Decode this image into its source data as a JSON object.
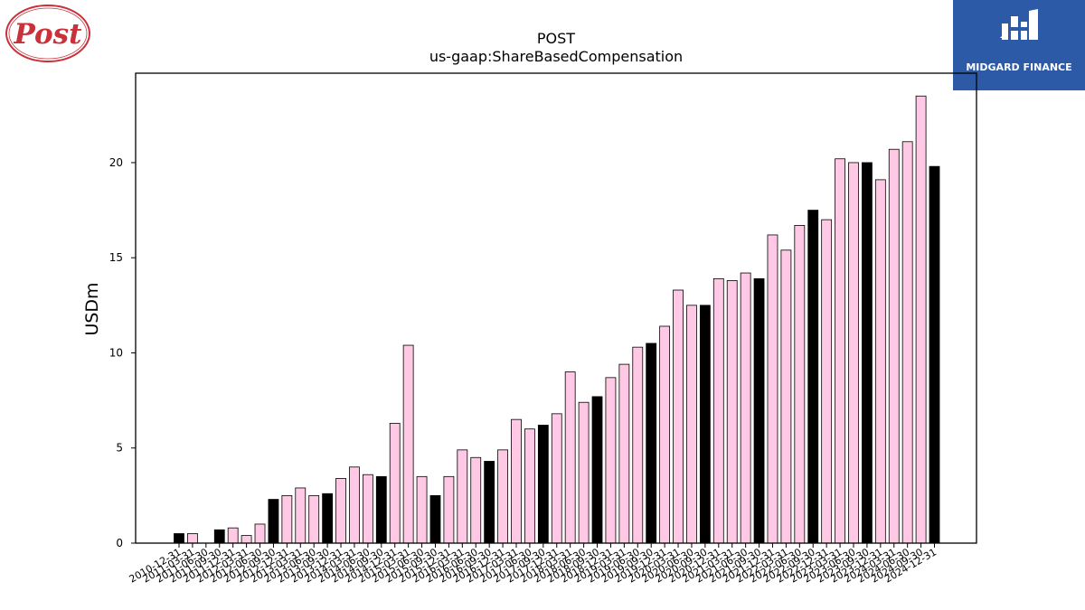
{
  "logos": {
    "left_name": "post-logo",
    "right_name": "midgard-finance-logo",
    "right_text": "MIDGARD FINANCE",
    "left_text": "Post"
  },
  "colors": {
    "bar_year_end": "#000000",
    "bar_quarter": "#ffc8e4",
    "bar_edge": "#000000",
    "logo_red": "#c9313b",
    "logo_blue": "#2c5aa7"
  },
  "chart_data": {
    "type": "bar",
    "title": "POST",
    "subtitle": "us-gaap:ShareBasedCompensation",
    "xlabel": "",
    "ylabel": "USDm",
    "ylim": [
      0,
      24.7
    ],
    "yticks": [
      0,
      5,
      10,
      15,
      20
    ],
    "grid": false,
    "legend": "none",
    "categories": [
      "2010-12-31",
      "2011-03-31",
      "2011-06-30",
      "2011-09-30",
      "2011-12-31",
      "2012-03-31",
      "2012-06-30",
      "2012-09-30",
      "2012-12-31",
      "2013-03-31",
      "2013-06-30",
      "2013-09-30",
      "2013-12-31",
      "2014-03-31",
      "2014-06-30",
      "2014-09-30",
      "2014-12-31",
      "2015-03-31",
      "2015-06-30",
      "2015-09-30",
      "2015-12-31",
      "2016-03-31",
      "2016-06-30",
      "2016-09-30",
      "2016-12-31",
      "2017-03-31",
      "2017-06-30",
      "2017-09-30",
      "2017-12-31",
      "2018-03-31",
      "2018-06-30",
      "2018-09-30",
      "2018-12-31",
      "2019-03-31",
      "2019-06-30",
      "2019-09-30",
      "2019-12-31",
      "2020-03-31",
      "2020-06-30",
      "2020-09-30",
      "2020-12-31",
      "2021-03-31",
      "2021-06-30",
      "2021-09-30",
      "2021-12-31",
      "2022-03-31",
      "2022-06-30",
      "2022-09-30",
      "2022-12-31",
      "2023-03-31",
      "2023-06-30",
      "2023-09-30",
      "2023-12-31",
      "2024-03-31",
      "2024-06-30",
      "2024-09-30",
      "2024-12-31"
    ],
    "values": [
      0.5,
      0.5,
      0,
      0.7,
      0.8,
      0.4,
      1.0,
      2.3,
      2.5,
      2.9,
      2.5,
      2.6,
      3.4,
      4.0,
      3.6,
      3.5,
      6.3,
      10.4,
      3.5,
      2.5,
      3.5,
      4.9,
      4.5,
      4.3,
      4.9,
      6.5,
      6.0,
      6.2,
      6.8,
      9.0,
      7.4,
      7.7,
      8.7,
      9.4,
      10.3,
      10.5,
      11.4,
      13.3,
      12.5,
      12.5,
      13.9,
      13.8,
      14.2,
      13.9,
      16.2,
      15.4,
      16.7,
      17.5,
      17.0,
      20.2,
      20.0,
      20.0,
      19.1,
      20.7,
      21.1,
      23.5,
      19.8
    ],
    "fiscal_year_end_categories": [
      "2010-12-31",
      "2011-09-30",
      "2012-09-30",
      "2013-09-30",
      "2014-09-30",
      "2015-09-30",
      "2016-09-30",
      "2017-09-30",
      "2018-09-30",
      "2019-09-30",
      "2020-09-30",
      "2021-09-30",
      "2022-09-30",
      "2023-09-30",
      "2024-12-31"
    ]
  }
}
